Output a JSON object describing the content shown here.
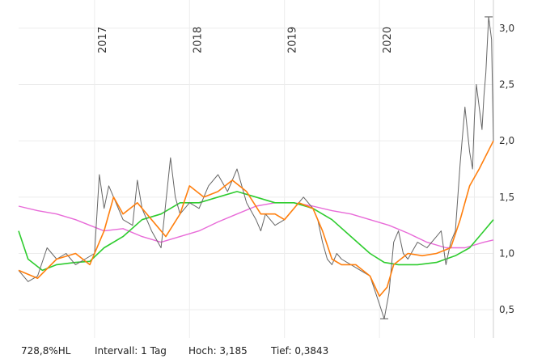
{
  "chart_data": {
    "type": "line",
    "x_ticks": [
      "2017",
      "2018",
      "2019",
      "2020"
    ],
    "y_ticks": [
      "0,5",
      "1,0",
      "1,5",
      "2,0",
      "2,5",
      "3,0"
    ],
    "y_tick_values": [
      0.5,
      1.0,
      1.5,
      2.0,
      2.5,
      3.0
    ],
    "ylim": [
      0.25,
      3.25
    ],
    "xlim": [
      2016.2,
      2021.2
    ],
    "grid": true,
    "colors": {
      "price": "#666666",
      "ma_short": "#ff7f0e",
      "ma_mid": "#2ecc2e",
      "ma_long": "#e86bd8",
      "grid": "#ececec"
    },
    "series": [
      {
        "key": "price",
        "x": [
          2016.2,
          2016.3,
          2016.4,
          2016.5,
          2016.6,
          2016.7,
          2016.8,
          2016.9,
          2017.0,
          2017.05,
          2017.1,
          2017.15,
          2017.2,
          2017.3,
          2017.4,
          2017.45,
          2017.5,
          2017.55,
          2017.6,
          2017.7,
          2017.8,
          2017.85,
          2017.9,
          2018.0,
          2018.1,
          2018.2,
          2018.3,
          2018.4,
          2018.5,
          2018.6,
          2018.7,
          2018.75,
          2018.8,
          2018.9,
          2019.0,
          2019.1,
          2019.2,
          2019.3,
          2019.35,
          2019.4,
          2019.45,
          2019.5,
          2019.55,
          2019.6,
          2019.7,
          2019.8,
          2019.9,
          2020.0,
          2020.05,
          2020.1,
          2020.15,
          2020.2,
          2020.25,
          2020.3,
          2020.4,
          2020.5,
          2020.6,
          2020.65,
          2020.7,
          2020.75,
          2020.8,
          2020.85,
          2020.9,
          2020.95,
          2020.98,
          2021.0,
          2021.02,
          2021.05,
          2021.08,
          2021.1,
          2021.12,
          2021.15,
          2021.18,
          2021.2
        ],
        "y": [
          0.85,
          0.75,
          0.8,
          1.05,
          0.95,
          1.0,
          0.9,
          0.95,
          1.0,
          1.7,
          1.4,
          1.6,
          1.5,
          1.3,
          1.25,
          1.65,
          1.4,
          1.3,
          1.2,
          1.05,
          1.85,
          1.5,
          1.35,
          1.45,
          1.4,
          1.6,
          1.7,
          1.55,
          1.75,
          1.45,
          1.3,
          1.2,
          1.35,
          1.25,
          1.3,
          1.4,
          1.5,
          1.4,
          1.3,
          1.1,
          0.95,
          0.9,
          1.0,
          0.95,
          0.9,
          0.85,
          0.8,
          0.55,
          0.42,
          0.65,
          1.1,
          1.2,
          1.0,
          0.95,
          1.1,
          1.05,
          1.15,
          1.2,
          0.9,
          1.1,
          1.2,
          1.8,
          2.3,
          1.9,
          1.75,
          2.2,
          2.5,
          2.3,
          2.1,
          2.4,
          2.6,
          3.1,
          2.9,
          2.0
        ]
      },
      {
        "key": "ma_short",
        "x": [
          2016.2,
          2016.4,
          2016.6,
          2016.8,
          2016.95,
          2017.1,
          2017.2,
          2017.3,
          2017.45,
          2017.6,
          2017.75,
          2017.9,
          2018.0,
          2018.15,
          2018.3,
          2018.45,
          2018.6,
          2018.75,
          2018.9,
          2019.0,
          2019.15,
          2019.3,
          2019.4,
          2019.5,
          2019.6,
          2019.75,
          2019.9,
          2020.0,
          2020.08,
          2020.15,
          2020.3,
          2020.45,
          2020.6,
          2020.75,
          2020.85,
          2020.95,
          2021.05,
          2021.2
        ],
        "y": [
          0.85,
          0.78,
          0.95,
          1.0,
          0.9,
          1.2,
          1.5,
          1.35,
          1.45,
          1.3,
          1.15,
          1.35,
          1.6,
          1.5,
          1.55,
          1.65,
          1.55,
          1.35,
          1.35,
          1.3,
          1.45,
          1.4,
          1.2,
          0.95,
          0.9,
          0.9,
          0.8,
          0.62,
          0.7,
          0.9,
          1.0,
          0.98,
          1.0,
          1.05,
          1.3,
          1.6,
          1.75,
          2.0
        ]
      },
      {
        "key": "ma_mid",
        "x": [
          2016.2,
          2016.3,
          2016.45,
          2016.6,
          2016.8,
          2016.95,
          2017.1,
          2017.3,
          2017.5,
          2017.7,
          2017.9,
          2018.1,
          2018.3,
          2018.5,
          2018.7,
          2018.9,
          2019.1,
          2019.3,
          2019.5,
          2019.7,
          2019.9,
          2020.05,
          2020.2,
          2020.4,
          2020.6,
          2020.8,
          2020.95,
          2021.1,
          2021.2
        ],
        "y": [
          1.2,
          0.95,
          0.85,
          0.9,
          0.92,
          0.93,
          1.05,
          1.15,
          1.3,
          1.35,
          1.45,
          1.45,
          1.5,
          1.55,
          1.5,
          1.45,
          1.45,
          1.4,
          1.3,
          1.15,
          1.0,
          0.92,
          0.9,
          0.9,
          0.92,
          0.98,
          1.05,
          1.2,
          1.3
        ]
      },
      {
        "key": "ma_long",
        "x": [
          2016.2,
          2016.4,
          2016.6,
          2016.8,
          2016.95,
          2017.1,
          2017.3,
          2017.5,
          2017.7,
          2017.9,
          2018.1,
          2018.3,
          2018.5,
          2018.7,
          2018.9,
          2019.1,
          2019.3,
          2019.5,
          2019.7,
          2019.9,
          2020.1,
          2020.3,
          2020.5,
          2020.7,
          2020.9,
          2021.1,
          2021.2
        ],
        "y": [
          1.42,
          1.38,
          1.35,
          1.3,
          1.25,
          1.2,
          1.22,
          1.15,
          1.1,
          1.15,
          1.2,
          1.28,
          1.35,
          1.42,
          1.45,
          1.45,
          1.42,
          1.38,
          1.35,
          1.3,
          1.25,
          1.18,
          1.1,
          1.05,
          1.05,
          1.1,
          1.12
        ]
      }
    ]
  },
  "footer": {
    "range": "728,8%HL",
    "interval": "Intervall: 1 Tag",
    "high": "Hoch: 3,185",
    "low": "Tief: 0,3843"
  }
}
